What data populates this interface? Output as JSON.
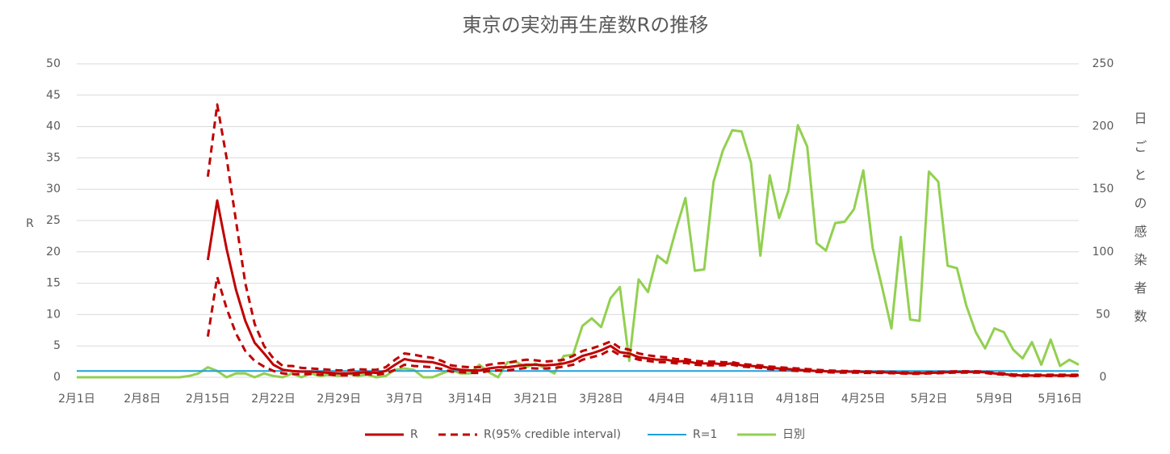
{
  "chart_data": {
    "type": "line",
    "title": "東京の実効再生産数Rの推移",
    "y_label": "R",
    "y2_label": "日ごとの感染者数",
    "categories": [
      "2月1日",
      null,
      null,
      null,
      null,
      null,
      null,
      "2月8日",
      null,
      null,
      null,
      null,
      null,
      null,
      "2月15日",
      null,
      null,
      null,
      null,
      null,
      null,
      "2月22日",
      null,
      null,
      null,
      null,
      null,
      null,
      "2月29日",
      null,
      null,
      null,
      null,
      null,
      null,
      "3月7日",
      null,
      null,
      null,
      null,
      null,
      null,
      "3月14日",
      null,
      null,
      null,
      null,
      null,
      null,
      "3月21日",
      null,
      null,
      null,
      null,
      null,
      null,
      "3月28日",
      null,
      null,
      null,
      null,
      null,
      null,
      "4月4日",
      null,
      null,
      null,
      null,
      null,
      null,
      "4月11日",
      null,
      null,
      null,
      null,
      null,
      null,
      "4月18日",
      null,
      null,
      null,
      null,
      null,
      null,
      "4月25日",
      null,
      null,
      null,
      null,
      null,
      null,
      "5月2日",
      null,
      null,
      null,
      null,
      null,
      null,
      "5月9日",
      null,
      null,
      null,
      null,
      null,
      null,
      "5月16日",
      null,
      null
    ],
    "ylim": [
      0,
      50
    ],
    "yticks": [
      0,
      5,
      10,
      15,
      20,
      25,
      30,
      35,
      40,
      45,
      50
    ],
    "y2lim": [
      0,
      250
    ],
    "y2ticks": [
      0,
      50,
      100,
      150,
      200,
      250
    ],
    "grid": true,
    "legend": "bottom",
    "series": [
      {
        "name": "R",
        "kind": "line",
        "color": "#c00000",
        "values": [
          null,
          null,
          null,
          null,
          null,
          null,
          null,
          null,
          null,
          null,
          null,
          null,
          null,
          null,
          18.7,
          28.2,
          20.5,
          14,
          9,
          5.5,
          3.8,
          2,
          1.2,
          1.0,
          0.9,
          0.9,
          0.8,
          0.7,
          0.6,
          0.6,
          0.7,
          0.8,
          0.7,
          1.0,
          2.0,
          2.9,
          2.6,
          2.5,
          2.4,
          2.0,
          1.4,
          1.2,
          1.1,
          1.1,
          1.4,
          1.6,
          1.6,
          1.8,
          2.0,
          2.0,
          1.9,
          2.0,
          2.2,
          2.6,
          3.4,
          3.8,
          4.3,
          5.0,
          4.0,
          3.8,
          3.2,
          3.0,
          2.8,
          2.8,
          2.5,
          2.6,
          2.3,
          2.2,
          2.2,
          2.1,
          2.2,
          1.9,
          1.8,
          1.7,
          1.5,
          1.4,
          1.3,
          1.2,
          1.1,
          1.0,
          0.95,
          0.9,
          0.9,
          0.9,
          0.85,
          0.8,
          0.8,
          0.75,
          0.7,
          0.65,
          0.65,
          0.7,
          0.75,
          0.8,
          0.85,
          0.85,
          0.85,
          0.8,
          0.6,
          0.5,
          0.35,
          0.3,
          0.3,
          0.3,
          0.3,
          0.3,
          0.3,
          0.3
        ]
      },
      {
        "name": "R(95% credible interval)",
        "kind": "interval",
        "color": "#c00000",
        "upper": [
          null,
          null,
          null,
          null,
          null,
          null,
          null,
          null,
          null,
          null,
          null,
          null,
          null,
          null,
          32,
          43.5,
          35,
          25,
          15,
          8.5,
          5,
          3,
          1.8,
          1.8,
          1.5,
          1.4,
          1.3,
          1.2,
          1.1,
          1.1,
          1.3,
          1.2,
          1.2,
          1.6,
          2.8,
          3.8,
          3.6,
          3.3,
          3.1,
          2.6,
          1.9,
          1.7,
          1.6,
          1.6,
          2.0,
          2.2,
          2.3,
          2.6,
          2.8,
          2.7,
          2.5,
          2.6,
          2.8,
          3.4,
          4.2,
          4.6,
          5.1,
          5.7,
          4.7,
          4.4,
          3.8,
          3.5,
          3.3,
          3.2,
          2.9,
          2.9,
          2.6,
          2.5,
          2.5,
          2.4,
          2.4,
          2.1,
          2.0,
          1.9,
          1.7,
          1.6,
          1.5,
          1.4,
          1.3,
          1.2,
          1.1,
          1.05,
          1.0,
          1.0,
          0.95,
          0.9,
          0.9,
          0.85,
          0.8,
          0.75,
          0.75,
          0.8,
          0.85,
          0.9,
          0.95,
          0.95,
          0.95,
          0.9,
          0.7,
          0.6,
          0.45,
          0.4,
          0.4,
          0.4,
          0.4,
          0.4,
          0.4,
          0.4
        ],
        "lower": [
          null,
          null,
          null,
          null,
          null,
          null,
          null,
          null,
          null,
          null,
          null,
          null,
          null,
          null,
          6.5,
          16,
          11,
          7,
          4.2,
          2.6,
          1.7,
          1.0,
          0.6,
          0.5,
          0.5,
          0.5,
          0.4,
          0.4,
          0.3,
          0.3,
          0.4,
          0.5,
          0.4,
          0.6,
          1.2,
          2.0,
          1.8,
          1.7,
          1.6,
          1.3,
          0.9,
          0.8,
          0.7,
          0.7,
          1.0,
          1.1,
          1.1,
          1.3,
          1.5,
          1.4,
          1.4,
          1.5,
          1.7,
          2.0,
          2.8,
          3.2,
          3.6,
          4.4,
          3.5,
          3.3,
          2.8,
          2.6,
          2.4,
          2.4,
          2.2,
          2.3,
          2.0,
          1.9,
          1.9,
          1.9,
          2.0,
          1.7,
          1.6,
          1.5,
          1.3,
          1.2,
          1.1,
          1.0,
          0.95,
          0.85,
          0.8,
          0.75,
          0.75,
          0.75,
          0.7,
          0.7,
          0.7,
          0.65,
          0.6,
          0.55,
          0.55,
          0.6,
          0.65,
          0.7,
          0.75,
          0.75,
          0.75,
          0.7,
          0.5,
          0.4,
          0.25,
          0.2,
          0.2,
          0.2,
          0.2,
          0.2,
          0.2,
          0.2
        ]
      },
      {
        "name": "R=1",
        "kind": "hline",
        "color": "#1fa0dc",
        "value": 1
      },
      {
        "name": "日別",
        "kind": "line",
        "axis": "y2",
        "color": "#92d050",
        "values": [
          0,
          0,
          0,
          0,
          0,
          0,
          0,
          0,
          0,
          0,
          0,
          0,
          1,
          3,
          8,
          5,
          0,
          3,
          3,
          0,
          3,
          1,
          0,
          3,
          0,
          3,
          1,
          2,
          1,
          3,
          1,
          2,
          0,
          1,
          6,
          7,
          6,
          0,
          0,
          3,
          6,
          3,
          3,
          10,
          4,
          0,
          12,
          12,
          8,
          11,
          7,
          3,
          17,
          18,
          41,
          47,
          40,
          63,
          72,
          13,
          78,
          68,
          97,
          91,
          118,
          143,
          85,
          86,
          156,
          181,
          197,
          196,
          171,
          97,
          161,
          127,
          149,
          201,
          184,
          107,
          101,
          123,
          124,
          134,
          165,
          103,
          72,
          39,
          112,
          46,
          45,
          164,
          156,
          89,
          87,
          57,
          36,
          23,
          39,
          36,
          22,
          15,
          28,
          10,
          30,
          9,
          14,
          10
        ]
      }
    ]
  }
}
